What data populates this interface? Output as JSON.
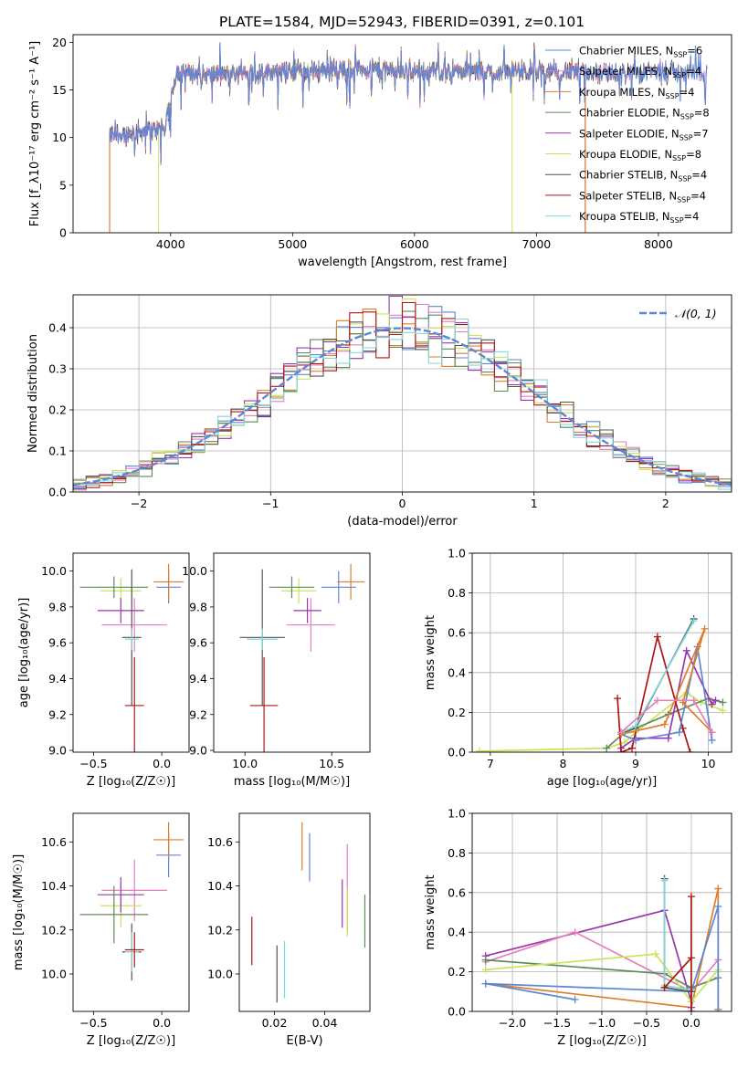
{
  "figure_title": "PLATE=1584, MJD=52943, FIBERID=0391, z=0.101",
  "colors": {
    "chabrier_miles": "#5b87d8",
    "salpeter_miles": "#d8a0c8",
    "kroupa_miles": "#de7e2a",
    "chabrier_elodie": "#5f8a5a",
    "salpeter_elodie": "#9b36b0",
    "kroupa_elodie": "#c9e45a",
    "chabrier_stelib": "#555555",
    "salpeter_stelib": "#b01515",
    "kroupa_stelib": "#7fd9d9",
    "pink": "#e67fbf",
    "gaussian": "#5b87d8"
  },
  "chart_data": [
    {
      "id": "spectrum",
      "type": "line",
      "title": "PLATE=1584, MJD=52943, FIBERID=0391, z=0.101",
      "xlabel": "wavelength [Angstrom, rest frame]",
      "ylabel": "Flux [f_λ10⁻¹⁷ erg cm⁻² s⁻¹ A⁻¹]",
      "xlim": [
        3200,
        8600
      ],
      "ylim": [
        0,
        20.8
      ],
      "xticks": [
        4000,
        5000,
        6000,
        7000,
        8000
      ],
      "yticks": [
        0,
        5,
        10,
        15,
        20
      ],
      "legend": "top-right",
      "series": [
        {
          "name": "Chabrier MILES, N_SSP=6",
          "key": "chabrier_miles",
          "x_range": [
            3500,
            8400
          ]
        },
        {
          "name": "Salpeter MILES, N_SSP=4",
          "key": "pink",
          "x_range": [
            3500,
            8400
          ]
        },
        {
          "name": "Kroupa MILES, N_SSP=4",
          "key": "kroupa_miles",
          "x_range": [
            3500,
            7400
          ]
        },
        {
          "name": "Chabrier ELODIE, N_SSP=8",
          "key": "chabrier_elodie",
          "x_range": [
            3900,
            6800
          ]
        },
        {
          "name": "Salpeter ELODIE, N_SSP=7",
          "key": "salpeter_elodie",
          "x_range": [
            3900,
            6800
          ]
        },
        {
          "name": "Kroupa ELODIE, N_SSP=8",
          "key": "kroupa_elodie",
          "x_range": [
            3900,
            6800
          ]
        },
        {
          "name": "Chabrier STELIB, N_SSP=4",
          "key": "chabrier_stelib",
          "x_range": [
            3500,
            8400
          ]
        },
        {
          "name": "Salpeter STELIB, N_SSP=4",
          "key": "salpeter_stelib",
          "x_range": [
            3500,
            7400
          ]
        },
        {
          "name": "Kroupa STELIB, N_SSP=4",
          "key": "kroupa_stelib",
          "x_range": [
            3500,
            8400
          ]
        }
      ],
      "continuum": {
        "x": [
          3450,
          3700,
          3950,
          4050,
          4300,
          4600,
          5000,
          5500,
          6000,
          6500,
          7000,
          7500,
          8000,
          8400
        ],
        "y": [
          10.0,
          10.5,
          11.0,
          17.0,
          16.5,
          16.8,
          17.0,
          17.2,
          17.0,
          16.9,
          16.9,
          16.9,
          16.8,
          16.8
        ]
      }
    },
    {
      "id": "residuals",
      "type": "line",
      "xlabel": "(data-model)/error",
      "ylabel": "Normed distribution",
      "xlim": [
        -2.5,
        2.5
      ],
      "ylim": [
        0,
        0.48
      ],
      "xticks": [
        -2,
        -1,
        0,
        1,
        2
      ],
      "yticks": [
        0.0,
        0.1,
        0.2,
        0.3,
        0.4
      ],
      "legend_label": "𝒩(0, 1)",
      "gaussian": {
        "mean": 0,
        "sigma": 1
      }
    },
    {
      "id": "age_vs_Z",
      "type": "scatter",
      "xlabel": "Z [log₁₀(Z/Z☉)]",
      "ylabel": "age  [log₁₀(age/yr)]",
      "xlim": [
        -0.65,
        0.2
      ],
      "ylim": [
        8.99,
        10.1
      ],
      "xticks": [
        -0.5,
        0.0
      ],
      "yticks": [
        9.0,
        9.2,
        9.4,
        9.6,
        9.8,
        10.0
      ],
      "points": [
        {
          "key": "chabrier_miles",
          "x": 0.05,
          "y": 9.91,
          "xerr": 0.09,
          "yerr": 0.09
        },
        {
          "key": "kroupa_miles",
          "x": 0.05,
          "y": 9.94,
          "xerr": 0.11,
          "yerr": 0.1
        },
        {
          "key": "pink",
          "x": -0.2,
          "y": 9.7,
          "xerr": 0.24,
          "yerr": 0.15
        },
        {
          "key": "kroupa_elodie",
          "x": -0.3,
          "y": 9.89,
          "xerr": 0.15,
          "yerr": 0.07
        },
        {
          "key": "salpeter_elodie",
          "x": -0.3,
          "y": 9.78,
          "xerr": 0.17,
          "yerr": 0.07
        },
        {
          "key": "chabrier_elodie",
          "x": -0.35,
          "y": 9.91,
          "xerr": 0.25,
          "yerr": 0.06
        },
        {
          "key": "chabrier_stelib",
          "x": -0.22,
          "y": 9.63,
          "xerr": 0.07,
          "yerr": 0.38
        },
        {
          "key": "kroupa_stelib",
          "x": -0.22,
          "y": 9.62,
          "xerr": 0.05,
          "yerr": 0.06
        },
        {
          "key": "salpeter_stelib",
          "x": -0.2,
          "y": 9.25,
          "xerr": 0.07,
          "yerr": 0.27
        }
      ]
    },
    {
      "id": "age_vs_mass",
      "type": "scatter",
      "xlabel": "mass [log₁₀(M/M☉)]",
      "ylabel": "",
      "xlim": [
        9.82,
        10.72
      ],
      "ylim": [
        8.99,
        10.1
      ],
      "xticks": [
        10.0,
        10.5
      ],
      "yticks": [
        9.0,
        9.2,
        9.4,
        9.6,
        9.8,
        10.0
      ],
      "points": [
        {
          "key": "chabrier_miles",
          "x": 10.54,
          "y": 9.91,
          "xerr": 0.1,
          "yerr": 0.09
        },
        {
          "key": "kroupa_miles",
          "x": 10.61,
          "y": 9.94,
          "xerr": 0.08,
          "yerr": 0.1
        },
        {
          "key": "pink",
          "x": 10.38,
          "y": 9.7,
          "xerr": 0.14,
          "yerr": 0.15
        },
        {
          "key": "kroupa_elodie",
          "x": 10.31,
          "y": 9.89,
          "xerr": 0.1,
          "yerr": 0.07
        },
        {
          "key": "salpeter_elodie",
          "x": 10.36,
          "y": 9.78,
          "xerr": 0.08,
          "yerr": 0.07
        },
        {
          "key": "chabrier_elodie",
          "x": 10.27,
          "y": 9.91,
          "xerr": 0.13,
          "yerr": 0.06
        },
        {
          "key": "chabrier_stelib",
          "x": 10.1,
          "y": 9.63,
          "xerr": 0.13,
          "yerr": 0.38
        },
        {
          "key": "kroupa_stelib",
          "x": 10.1,
          "y": 9.62,
          "xerr": 0.09,
          "yerr": 0.06
        },
        {
          "key": "salpeter_stelib",
          "x": 10.11,
          "y": 9.25,
          "xerr": 0.08,
          "yerr": 0.27
        }
      ]
    },
    {
      "id": "mass_weight_vs_age",
      "type": "line",
      "xlabel": "age  [log₁₀(age/yr)]",
      "ylabel": "mass weight",
      "xlim": [
        6.75,
        10.32
      ],
      "ylim": [
        0,
        1.0
      ],
      "xticks": [
        7,
        8,
        9,
        10
      ],
      "yticks": [
        0.0,
        0.2,
        0.4,
        0.6,
        0.8,
        1.0
      ],
      "series": [
        {
          "key": "kroupa_elodie",
          "x": [
            6.85,
            8.6,
            8.85,
            9.0,
            9.7,
            9.9,
            10.2
          ],
          "y": [
            0.005,
            0.02,
            0.05,
            0.1,
            0.3,
            0.25,
            0.21
          ]
        },
        {
          "key": "chabrier_elodie",
          "x": [
            8.6,
            8.85,
            9.0,
            9.45,
            10.0,
            10.2
          ],
          "y": [
            0.02,
            0.1,
            0.12,
            0.19,
            0.27,
            0.25
          ]
        },
        {
          "key": "salpeter_elodie",
          "x": [
            8.8,
            9.0,
            9.45,
            9.7,
            10.05,
            10.1
          ],
          "y": [
            0.02,
            0.07,
            0.07,
            0.51,
            0.24,
            0.26
          ]
        },
        {
          "key": "salpeter_stelib",
          "x": [
            8.75,
            8.8,
            8.95,
            9.3,
            9.65,
            9.75
          ],
          "y": [
            0.27,
            0.0,
            0.02,
            0.58,
            0.12,
            0.0
          ]
        },
        {
          "key": "chabrier_stelib",
          "x": [
            8.8,
            9.0,
            9.8
          ],
          "y": [
            0.1,
            0.12,
            0.67
          ]
        },
        {
          "key": "kroupa_stelib",
          "x": [
            8.8,
            9.0,
            9.8
          ],
          "y": [
            0.1,
            0.13,
            0.66
          ]
        },
        {
          "key": "chabrier_miles",
          "x": [
            8.8,
            9.0,
            9.6,
            9.85,
            10.05
          ],
          "y": [
            0.09,
            0.06,
            0.1,
            0.53,
            0.06
          ]
        },
        {
          "key": "kroupa_miles",
          "x": [
            8.8,
            9.4,
            9.95,
            9.65,
            10.05
          ],
          "y": [
            0.09,
            0.14,
            0.62,
            0.25,
            0.1
          ]
        },
        {
          "key": "pink",
          "x": [
            8.8,
            9.3,
            9.8,
            10.05
          ],
          "y": [
            0.1,
            0.26,
            0.26,
            0.1
          ]
        }
      ]
    },
    {
      "id": "mass_vs_Z",
      "type": "scatter",
      "xlabel": "Z [log₁₀(Z/Z☉)]",
      "ylabel": "mass [log₁₀(M/M☉)]",
      "xlim": [
        -0.65,
        0.2
      ],
      "ylim": [
        9.83,
        10.73
      ],
      "xticks": [
        -0.5,
        0.0
      ],
      "yticks": [
        10.0,
        10.2,
        10.4,
        10.6
      ],
      "points": [
        {
          "key": "chabrier_miles",
          "x": 0.05,
          "y": 10.54,
          "xerr": 0.09,
          "yerr": 0.1
        },
        {
          "key": "kroupa_miles",
          "x": 0.05,
          "y": 10.61,
          "xerr": 0.11,
          "yerr": 0.08
        },
        {
          "key": "pink",
          "x": -0.2,
          "y": 10.38,
          "xerr": 0.24,
          "yerr": 0.14
        },
        {
          "key": "kroupa_elodie",
          "x": -0.3,
          "y": 10.31,
          "xerr": 0.15,
          "yerr": 0.1
        },
        {
          "key": "salpeter_elodie",
          "x": -0.3,
          "y": 10.36,
          "xerr": 0.17,
          "yerr": 0.08
        },
        {
          "key": "chabrier_elodie",
          "x": -0.35,
          "y": 10.27,
          "xerr": 0.25,
          "yerr": 0.13
        },
        {
          "key": "chabrier_stelib",
          "x": -0.22,
          "y": 10.1,
          "xerr": 0.07,
          "yerr": 0.13
        },
        {
          "key": "kroupa_stelib",
          "x": -0.22,
          "y": 10.1,
          "xerr": 0.05,
          "yerr": 0.09
        },
        {
          "key": "salpeter_stelib",
          "x": -0.2,
          "y": 10.11,
          "xerr": 0.07,
          "yerr": 0.08
        }
      ]
    },
    {
      "id": "mass_vs_ebv",
      "type": "scatter",
      "xlabel": "E(B-V)",
      "ylabel": "",
      "xlim": [
        0.006,
        0.058
      ],
      "ylim": [
        9.83,
        10.73
      ],
      "xticks": [
        0.02,
        0.04
      ],
      "yticks": [
        10.0,
        10.2,
        10.4,
        10.6
      ],
      "points": [
        {
          "key": "salpeter_stelib",
          "x": 0.011,
          "y": 10.15,
          "yerr": 0.11
        },
        {
          "key": "chabrier_stelib",
          "x": 0.021,
          "y": 10.0,
          "yerr": 0.13
        },
        {
          "key": "kroupa_stelib",
          "x": 0.024,
          "y": 10.02,
          "yerr": 0.13
        },
        {
          "key": "kroupa_miles",
          "x": 0.031,
          "y": 10.58,
          "yerr": 0.11
        },
        {
          "key": "chabrier_miles",
          "x": 0.034,
          "y": 10.53,
          "yerr": 0.11
        },
        {
          "key": "salpeter_elodie",
          "x": 0.047,
          "y": 10.32,
          "yerr": 0.11
        },
        {
          "key": "pink",
          "x": 0.049,
          "y": 10.39,
          "yerr": 0.2
        },
        {
          "key": "kroupa_elodie",
          "x": 0.049,
          "y": 10.28,
          "yerr": 0.11
        },
        {
          "key": "chabrier_elodie",
          "x": 0.056,
          "y": 10.24,
          "yerr": 0.12
        }
      ]
    },
    {
      "id": "mass_weight_vs_Z",
      "type": "line",
      "xlabel": "Z [log₁₀(Z/Z☉)]",
      "ylabel": "mass weight",
      "xlim": [
        -2.45,
        0.45
      ],
      "ylim": [
        0,
        1.0
      ],
      "xticks": [
        -2.0,
        -1.5,
        -1.0,
        -0.5,
        0.0
      ],
      "yticks": [
        0.0,
        0.2,
        0.4,
        0.6,
        0.8,
        1.0
      ],
      "series": [
        {
          "key": "kroupa_miles",
          "x": [
            -2.3,
            0.0,
            0.3,
            0.3
          ],
          "y": [
            0.14,
            0.02,
            0.62,
            0.01
          ]
        },
        {
          "key": "salpeter_elodie",
          "x": [
            -2.3,
            -0.3,
            0.0,
            0.0
          ],
          "y": [
            0.28,
            0.51,
            0.05,
            0.02
          ]
        },
        {
          "key": "pink",
          "x": [
            -2.3,
            -1.3,
            0.0,
            0.3
          ],
          "y": [
            0.25,
            0.4,
            0.1,
            0.26
          ]
        },
        {
          "key": "chabrier_elodie",
          "x": [
            -2.3,
            -0.3,
            0.0,
            0.3
          ],
          "y": [
            0.26,
            0.19,
            0.12,
            0.17
          ]
        },
        {
          "key": "kroupa_elodie",
          "x": [
            -2.3,
            -0.4,
            0.0,
            0.3
          ],
          "y": [
            0.21,
            0.29,
            0.05,
            0.21
          ]
        },
        {
          "key": "chabrier_miles",
          "x": [
            -1.3,
            -2.3,
            0.0,
            0.3,
            0.3
          ],
          "y": [
            0.06,
            0.14,
            0.1,
            0.53,
            0.0
          ]
        },
        {
          "key": "chabrier_stelib",
          "x": [
            -0.3,
            -0.3,
            0.0,
            0.0
          ],
          "y": [
            0.67,
            0.12,
            0.1,
            0.0
          ]
        },
        {
          "key": "kroupa_stelib",
          "x": [
            -0.3,
            -0.3,
            0.0
          ],
          "y": [
            0.66,
            0.13,
            0.11
          ]
        },
        {
          "key": "salpeter_stelib",
          "x": [
            -0.3,
            0.0,
            0.0,
            0.0
          ],
          "y": [
            0.12,
            0.27,
            0.0,
            0.58
          ]
        }
      ]
    }
  ]
}
